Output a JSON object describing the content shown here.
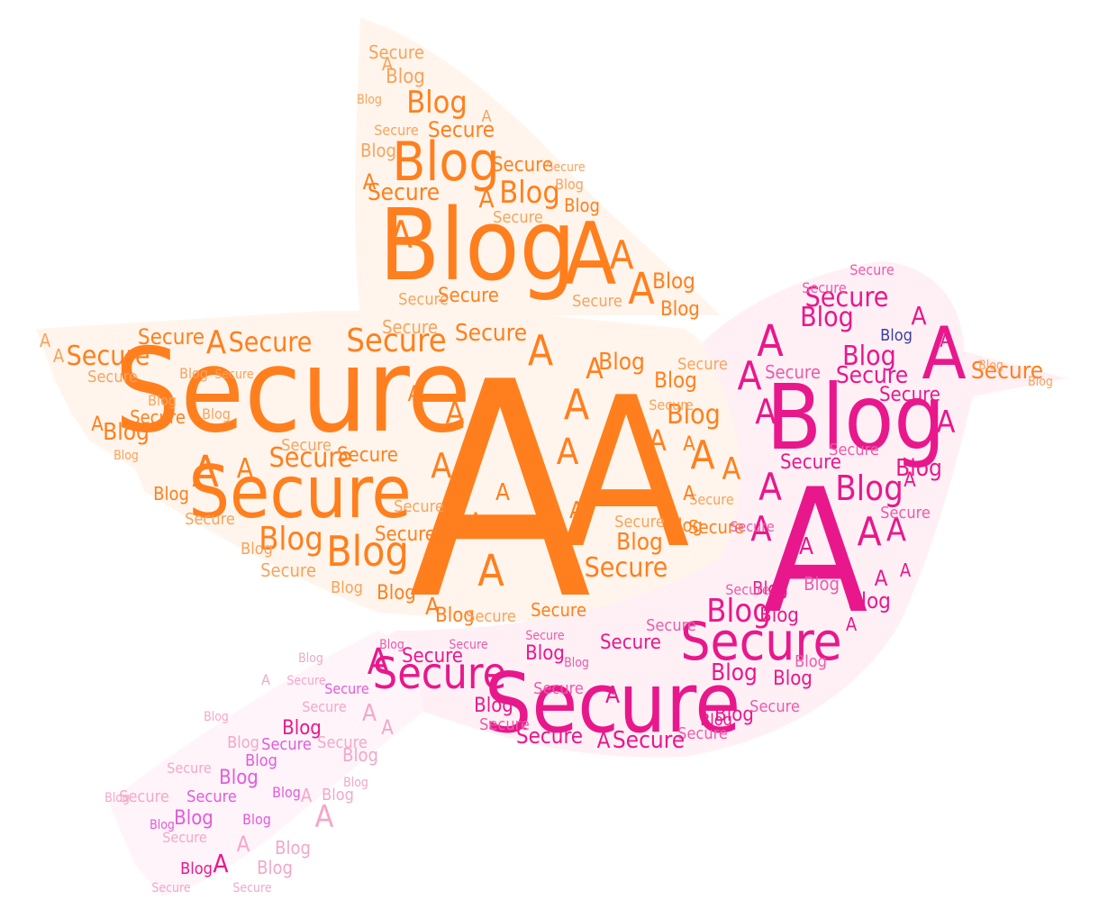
{
  "words": [
    "A",
    "Secure",
    "Blog"
  ],
  "colors": {
    "orange": "#ff7f1e",
    "orange_light": "#f7a35c",
    "pink": "#e8188c",
    "pink_mid": "#ec5aa8",
    "pink_light": "#f3a7c9",
    "magenta": "#e05bdc",
    "navy": "#3a3f9e"
  }
}
